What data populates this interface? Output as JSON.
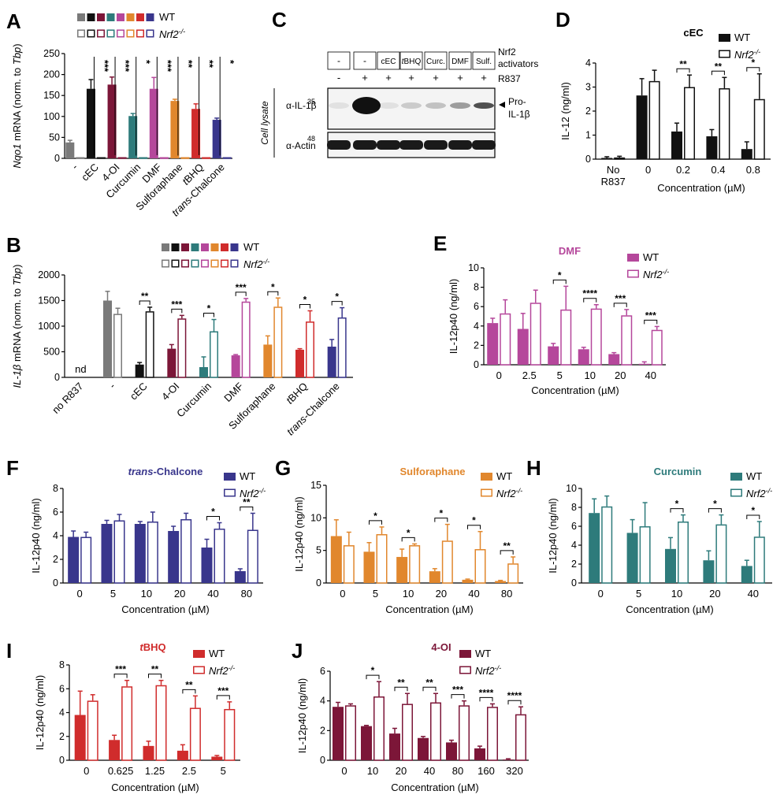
{
  "figure": {
    "wt_label": "WT",
    "ko_label": "Nrf2",
    "ko_sup": "-/-",
    "conc_label": "Concentration (µM)",
    "il12p40_label": "IL-12p40 (ng/ml)"
  },
  "colors": {
    "dmf": "#b5479b",
    "curcumin": "#2e7b7b",
    "sulforaphane": "#e1872d",
    "tbhq": "#d02c2c",
    "chalcone": "#39368c",
    "oi": "#7c1638",
    "gray": "#7a7a7a",
    "black": "#111111"
  },
  "panel_c": {
    "letter": "C",
    "header_activators": [
      "-",
      "-",
      "cEC",
      "tBHQ",
      "Curc.",
      "DMF",
      "Sulf."
    ],
    "header_r837": [
      "-",
      "+",
      "+",
      "+",
      "+",
      "+",
      "+"
    ],
    "row1_label": "Nrf2",
    "row1_label2": "activators",
    "row2_label": "R837",
    "cell_lysate": "Cell lysate",
    "il1b_label": "α-IL-1β",
    "il1b_mw": "35",
    "actin_label": "α-Actin",
    "actin_mw": "48",
    "pro_label1": "Pro-",
    "pro_label2": "IL-1β",
    "band_intensity": [
      0.05,
      1.0,
      0.05,
      0.18,
      0.22,
      0.38,
      0.72
    ]
  },
  "chart_data": [
    {
      "panel": "A",
      "type": "bar",
      "ylabel_gene": "Nqo1",
      "ylabel": "mRNA (norm. to Tbp)",
      "ylim": [
        0,
        250
      ],
      "yticks": [
        0,
        50,
        100,
        150,
        200,
        250
      ],
      "categories": [
        "-",
        "cEC",
        "4-OI",
        "Curcumin",
        "DMF",
        "Sulforaphane",
        "tBHQ",
        "trans-Chalcone"
      ],
      "colors": [
        "#7a7a7a",
        "#111111",
        "#7c1638",
        "#2e7b7b",
        "#b5479b",
        "#e1872d",
        "#d02c2c",
        "#39368c"
      ],
      "series": [
        {
          "name": "WT",
          "values": [
            38,
            166,
            176,
            101,
            166,
            137,
            118,
            92
          ],
          "errors": [
            5,
            22,
            18,
            6,
            27,
            4,
            12,
            4
          ]
        },
        {
          "name": "Nrf2-/-",
          "values": [
            0,
            2,
            2,
            1,
            2,
            1,
            2,
            1
          ],
          "errors": [
            0,
            0,
            0,
            0,
            0,
            0,
            0,
            0
          ]
        }
      ],
      "significance": [
        "",
        "***",
        "***",
        "*",
        "***",
        "**",
        "**",
        "*"
      ]
    },
    {
      "panel": "B",
      "type": "bar",
      "ylabel_gene": "IL-1β",
      "ylabel": "mRNA (norm. to Tbp)",
      "ylim": [
        0,
        2000
      ],
      "yticks": [
        0,
        500,
        1000,
        1500,
        2000
      ],
      "categories": [
        "no R837",
        "-",
        "cEC",
        "4-OI",
        "Curcumin",
        "DMF",
        "Sulforaphane",
        "tBHQ",
        "trans-Chalcone"
      ],
      "colors": [
        "#7a7a7a",
        "#7a7a7a",
        "#111111",
        "#7c1638",
        "#2e7b7b",
        "#b5479b",
        "#e1872d",
        "#d02c2c",
        "#39368c"
      ],
      "nd_label": "nd",
      "series": [
        {
          "name": "WT",
          "values": [
            null,
            1500,
            250,
            560,
            200,
            430,
            640,
            540,
            600
          ],
          "errors": [
            0,
            180,
            40,
            80,
            200,
            15,
            170,
            20,
            140
          ]
        },
        {
          "name": "Nrf2-/-",
          "values": [
            null,
            1240,
            1290,
            1150,
            900,
            1480,
            1380,
            1090,
            1170
          ],
          "errors": [
            0,
            110,
            80,
            60,
            230,
            60,
            170,
            210,
            190
          ]
        }
      ],
      "significance": [
        "",
        "",
        "**",
        "***",
        "*",
        "***",
        "*",
        "*",
        "*"
      ]
    },
    {
      "panel": "D",
      "type": "bar",
      "title": "cEC",
      "ylabel": "IL-12 (ng/ml)",
      "ylim": [
        0,
        4
      ],
      "yticks": [
        0,
        1,
        2,
        3,
        4
      ],
      "categories": [
        "No R837",
        "0",
        "0.2",
        "0.4",
        "0.8"
      ],
      "colors": [
        "#111111",
        "#111111",
        "#111111",
        "#111111",
        "#111111"
      ],
      "series": [
        {
          "name": "WT",
          "values": [
            0.05,
            2.65,
            1.15,
            0.95,
            0.42
          ],
          "errors": [
            0.05,
            0.7,
            0.35,
            0.28,
            0.3
          ]
        },
        {
          "name": "Nrf2-/-",
          "values": [
            0.07,
            3.25,
            3.0,
            2.95,
            2.5
          ],
          "errors": [
            0.05,
            0.45,
            0.5,
            0.45,
            1.05
          ]
        }
      ],
      "significance": [
        "",
        "",
        "**",
        "**",
        "*"
      ]
    },
    {
      "panel": "E",
      "type": "bar",
      "title": "DMF",
      "ylabel": "IL-12p40 (ng/ml)",
      "ylim": [
        0,
        10
      ],
      "yticks": [
        0,
        2,
        4,
        6,
        8,
        10
      ],
      "categories": [
        "0",
        "2.5",
        "5",
        "10",
        "20",
        "40"
      ],
      "series": [
        {
          "name": "WT",
          "values": [
            4.3,
            3.7,
            1.9,
            1.6,
            1.1,
            0.1
          ],
          "errors": [
            0.5,
            1.6,
            0.3,
            0.2,
            0.15,
            0.2
          ]
        },
        {
          "name": "Nrf2-/-",
          "values": [
            5.3,
            6.4,
            5.7,
            5.8,
            5.1,
            3.6
          ],
          "errors": [
            1.4,
            1.3,
            2.4,
            0.4,
            0.6,
            0.35
          ]
        }
      ],
      "significance": [
        "",
        "",
        "*",
        "****",
        "***",
        "***"
      ]
    },
    {
      "panel": "F",
      "type": "bar",
      "title": "trans-Chalcone",
      "ylabel": "IL-12p40 (ng/ml)",
      "ylim": [
        0,
        8
      ],
      "yticks": [
        0,
        2,
        4,
        6,
        8
      ],
      "categories": [
        "0",
        "5",
        "10",
        "20",
        "40",
        "80"
      ],
      "series": [
        {
          "name": "WT",
          "values": [
            3.9,
            5.0,
            5.0,
            4.4,
            3.0,
            1.0
          ],
          "errors": [
            0.5,
            0.3,
            0.2,
            0.4,
            0.7,
            0.2
          ]
        },
        {
          "name": "Nrf2-/-",
          "values": [
            3.9,
            5.3,
            5.2,
            5.4,
            4.6,
            4.5
          ],
          "errors": [
            0.4,
            0.5,
            0.8,
            0.5,
            0.5,
            1.4
          ]
        }
      ],
      "significance": [
        "",
        "",
        "",
        "",
        "*",
        "**"
      ]
    },
    {
      "panel": "G",
      "type": "bar",
      "title": "Sulforaphane",
      "ylabel": "IL-12p40 (ng/ml)",
      "ylim": [
        0,
        15
      ],
      "yticks": [
        0,
        5,
        10,
        15
      ],
      "categories": [
        "0",
        "5",
        "10",
        "20",
        "40",
        "80"
      ],
      "series": [
        {
          "name": "WT",
          "values": [
            7.2,
            4.8,
            4.0,
            1.8,
            0.5,
            0.3
          ],
          "errors": [
            2.5,
            1.4,
            1.2,
            0.4,
            0.1,
            0.1
          ]
        },
        {
          "name": "Nrf2-/-",
          "values": [
            5.8,
            7.5,
            5.8,
            6.5,
            5.2,
            3.0
          ],
          "errors": [
            2.0,
            1.1,
            0.2,
            2.5,
            2.7,
            1.0
          ]
        }
      ],
      "significance": [
        "",
        "*",
        "*",
        "*",
        "*",
        "**"
      ]
    },
    {
      "panel": "H",
      "type": "bar",
      "title": "Curcumin",
      "ylabel": "IL-12p40 (ng/ml)",
      "ylim": [
        0,
        10
      ],
      "yticks": [
        0,
        2,
        4,
        6,
        8,
        10
      ],
      "categories": [
        "0",
        "5",
        "10",
        "20",
        "40"
      ],
      "series": [
        {
          "name": "WT",
          "values": [
            7.4,
            5.3,
            3.6,
            2.4,
            1.8
          ],
          "errors": [
            1.5,
            1.4,
            1.2,
            1.0,
            0.6
          ]
        },
        {
          "name": "Nrf2-/-",
          "values": [
            8.1,
            6.0,
            6.5,
            6.2,
            4.9
          ],
          "errors": [
            1.1,
            2.5,
            0.7,
            1.0,
            1.6
          ]
        }
      ],
      "significance": [
        "",
        "",
        "*",
        "*",
        "*"
      ]
    },
    {
      "panel": "I",
      "type": "bar",
      "title": "tBHQ",
      "ylabel": "IL-12p40 (ng/ml)",
      "ylim": [
        0,
        8
      ],
      "yticks": [
        0,
        2,
        4,
        6,
        8
      ],
      "categories": [
        "0",
        "0.625",
        "1.25",
        "2.5",
        "5"
      ],
      "series": [
        {
          "name": "WT",
          "values": [
            3.8,
            1.7,
            1.2,
            0.8,
            0.3
          ],
          "errors": [
            2.0,
            0.4,
            0.4,
            0.5,
            0.1
          ]
        },
        {
          "name": "Nrf2-/-",
          "values": [
            5.0,
            6.2,
            6.3,
            4.4,
            4.3
          ],
          "errors": [
            0.5,
            0.5,
            0.4,
            1.0,
            0.6
          ]
        }
      ],
      "significance": [
        "",
        "***",
        "**",
        "**",
        "***"
      ]
    },
    {
      "panel": "J",
      "type": "bar",
      "title": "4-OI",
      "ylabel": "IL-12p40 (ng/ml)",
      "ylim": [
        0,
        6
      ],
      "yticks": [
        0,
        2,
        4,
        6
      ],
      "categories": [
        "0",
        "10",
        "20",
        "40",
        "80",
        "160",
        "320"
      ],
      "series": [
        {
          "name": "WT",
          "values": [
            3.6,
            2.3,
            1.8,
            1.5,
            1.2,
            0.8,
            0.05
          ],
          "errors": [
            0.3,
            0.05,
            0.35,
            0.1,
            0.15,
            0.15,
            0.05
          ]
        },
        {
          "name": "Nrf2-/-",
          "values": [
            3.7,
            4.3,
            3.8,
            3.9,
            3.7,
            3.6,
            3.1
          ],
          "errors": [
            0.1,
            1.0,
            0.7,
            0.6,
            0.3,
            0.2,
            0.5
          ]
        }
      ],
      "significance": [
        "",
        "*",
        "**",
        "**",
        "***",
        "****",
        "****"
      ]
    }
  ]
}
